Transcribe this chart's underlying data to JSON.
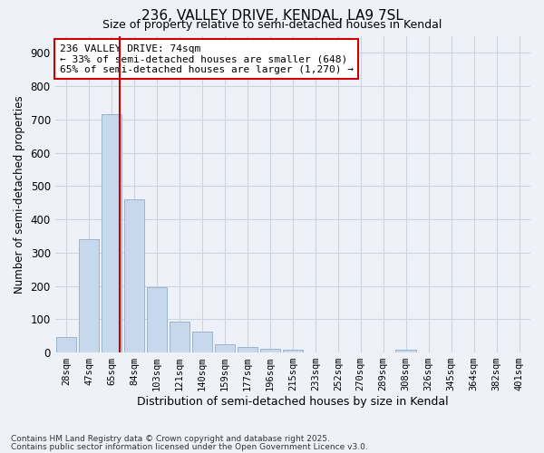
{
  "title1": "236, VALLEY DRIVE, KENDAL, LA9 7SL",
  "title2": "Size of property relative to semi-detached houses in Kendal",
  "xlabel": "Distribution of semi-detached houses by size in Kendal",
  "ylabel": "Number of semi-detached properties",
  "footnote1": "Contains HM Land Registry data © Crown copyright and database right 2025.",
  "footnote2": "Contains public sector information licensed under the Open Government Licence v3.0.",
  "annotation_title": "236 VALLEY DRIVE: 74sqm",
  "annotation_line1": "← 33% of semi-detached houses are smaller (648)",
  "annotation_line2": "65% of semi-detached houses are larger (1,270) →",
  "bar_labels": [
    "28sqm",
    "47sqm",
    "65sqm",
    "84sqm",
    "103sqm",
    "121sqm",
    "140sqm",
    "159sqm",
    "177sqm",
    "196sqm",
    "215sqm",
    "233sqm",
    "252sqm",
    "270sqm",
    "289sqm",
    "308sqm",
    "326sqm",
    "345sqm",
    "364sqm",
    "382sqm",
    "401sqm"
  ],
  "bar_values": [
    47,
    340,
    715,
    460,
    197,
    92,
    62,
    25,
    17,
    12,
    9,
    0,
    0,
    0,
    0,
    8,
    0,
    0,
    0,
    0,
    0
  ],
  "bar_color": "#c8d8ec",
  "bar_edge_color": "#9ab4cc",
  "grid_color": "#ccd4e0",
  "background_color": "#eef2f8",
  "vline_x": 2.35,
  "vline_color": "#cc0000",
  "annotation_box_color": "#ffffff",
  "annotation_box_edge": "#cc0000",
  "ylim": [
    0,
    950
  ],
  "yticks": [
    0,
    100,
    200,
    300,
    400,
    500,
    600,
    700,
    800,
    900
  ]
}
